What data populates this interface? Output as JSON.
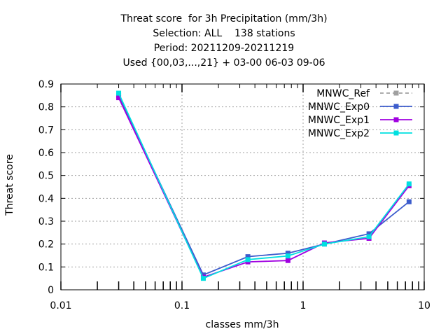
{
  "chart_data": {
    "type": "line",
    "title_lines": [
      "Threat score  for 3h Precipitation (mm/3h)",
      "Selection: ALL    138 stations",
      "Period: 20211209-20211219",
      "Used {00,03,...,21} + 03-00 06-03 09-06"
    ],
    "xlabel": "classes mm/3h",
    "ylabel": "Threat score",
    "x_scale": "log",
    "xlim": [
      0.01,
      10
    ],
    "ylim": [
      0,
      0.9
    ],
    "x_ticks": [
      0.01,
      0.1,
      1,
      10
    ],
    "x_tick_labels": [
      "0.01",
      "0.1",
      "1",
      "10"
    ],
    "y_ticks": [
      0,
      0.1,
      0.2,
      0.3,
      0.4,
      0.5,
      0.6,
      0.7,
      0.8,
      0.9
    ],
    "y_tick_labels": [
      "0",
      "0.1",
      "0.2",
      "0.3",
      "0.4",
      "0.5",
      "0.6",
      "0.7",
      "0.8",
      "0.9"
    ],
    "grid": true,
    "legend_position": "top-right",
    "x": [
      0.03,
      0.15,
      0.35,
      0.75,
      1.5,
      3.5,
      7.5
    ],
    "series": [
      {
        "name": "MNWC_Ref",
        "color": "#a0a0a0",
        "dashed": true,
        "values": [
          null,
          null,
          null,
          null,
          null,
          null,
          null
        ]
      },
      {
        "name": "MNWC_Exp0",
        "color": "#3c5ccc",
        "dashed": false,
        "values": [
          0.85,
          0.065,
          0.145,
          0.16,
          0.2,
          0.245,
          0.385
        ]
      },
      {
        "name": "MNWC_Exp1",
        "color": "#a000e0",
        "dashed": false,
        "values": [
          0.84,
          0.055,
          0.122,
          0.128,
          0.205,
          0.225,
          0.455
        ]
      },
      {
        "name": "MNWC_Exp2",
        "color": "#00e0e0",
        "dashed": false,
        "values": [
          0.86,
          0.05,
          0.132,
          0.148,
          0.2,
          0.232,
          0.463
        ]
      }
    ]
  }
}
